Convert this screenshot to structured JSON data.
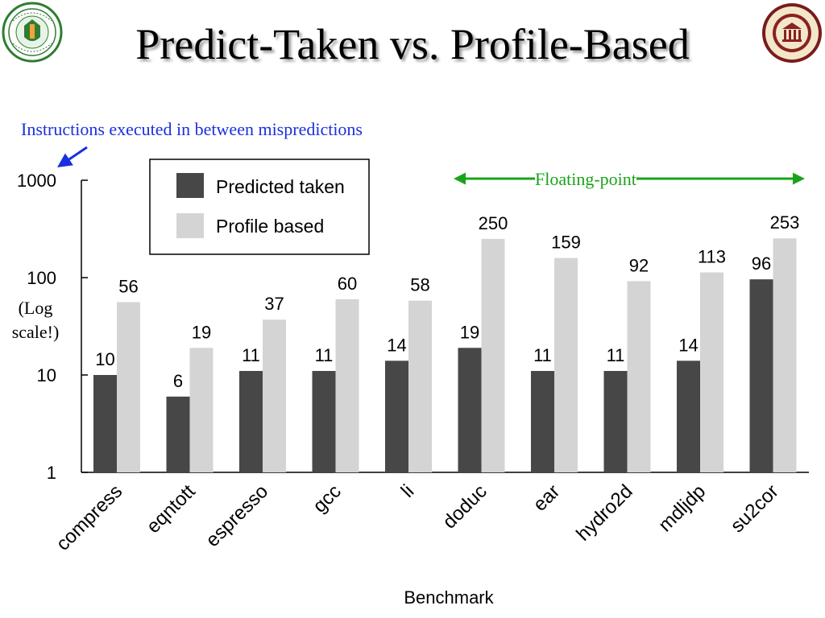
{
  "slide": {
    "title": "Predict-Taken vs. Profile-Based",
    "subtitle": "Instructions executed in between mispredictions",
    "floating_point_label": "Floating-point",
    "log_note_line1": "(Log",
    "log_note_line2": "scale!)"
  },
  "colors": {
    "title_text": "#000000",
    "subtitle": "#1a2fe0",
    "floating_point": "#1aa31a",
    "predicted_taken": "#474747",
    "profile_based": "#d4d4d4"
  },
  "logos": [
    {
      "name": "famu-seal-logo"
    },
    {
      "name": "fsu-seal-logo"
    }
  ],
  "chart_data": {
    "type": "bar",
    "scale": "log",
    "title": "",
    "xlabel": "Benchmark",
    "ylabel": "",
    "ylim": [
      1,
      1000
    ],
    "yticks": [
      "1000",
      "100",
      "10",
      "1"
    ],
    "categories": [
      "compress",
      "eqntott",
      "espresso",
      "gcc",
      "li",
      "doduc",
      "ear",
      "hydro2d",
      "mdljdp",
      "su2cor"
    ],
    "series": [
      {
        "name": "Predicted taken",
        "values": [
          10,
          6,
          11,
          11,
          14,
          19,
          11,
          11,
          14,
          96
        ]
      },
      {
        "name": "Profile based",
        "values": [
          56,
          19,
          37,
          60,
          58,
          250,
          159,
          92,
          113,
          253
        ]
      }
    ],
    "legend_position": "top-left"
  }
}
